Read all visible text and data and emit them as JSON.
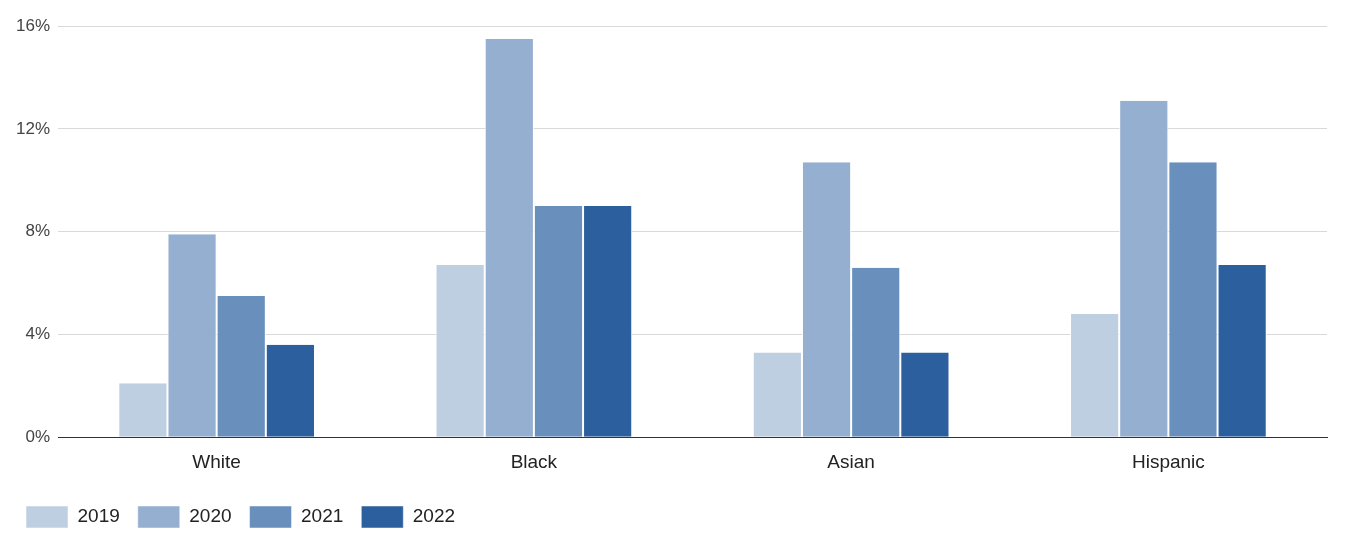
{
  "chart_data": {
    "type": "bar",
    "categories": [
      "White",
      "Black",
      "Asian",
      "Hispanic"
    ],
    "series": [
      {
        "name": "2019",
        "color": "#bfcfe2",
        "values": [
          2.1,
          6.7,
          3.3,
          4.8
        ]
      },
      {
        "name": "2020",
        "color": "#94afcf",
        "values": [
          7.9,
          15.5,
          10.7,
          13.1
        ]
      },
      {
        "name": "2021",
        "color": "#698fbd",
        "values": [
          5.5,
          9.0,
          6.6,
          10.7
        ]
      },
      {
        "name": "2022",
        "color": "#2c5f9e",
        "values": [
          3.6,
          9.0,
          3.3,
          6.7
        ]
      }
    ],
    "ylim": [
      0,
      16
    ],
    "yticks": [
      {
        "value": 0,
        "label": "0%"
      },
      {
        "value": 4,
        "label": "4%"
      },
      {
        "value": 8,
        "label": "8%"
      },
      {
        "value": 12,
        "label": "12%"
      },
      {
        "value": 16,
        "label": "16%"
      }
    ],
    "grid": "y",
    "legend": "bottom left"
  }
}
